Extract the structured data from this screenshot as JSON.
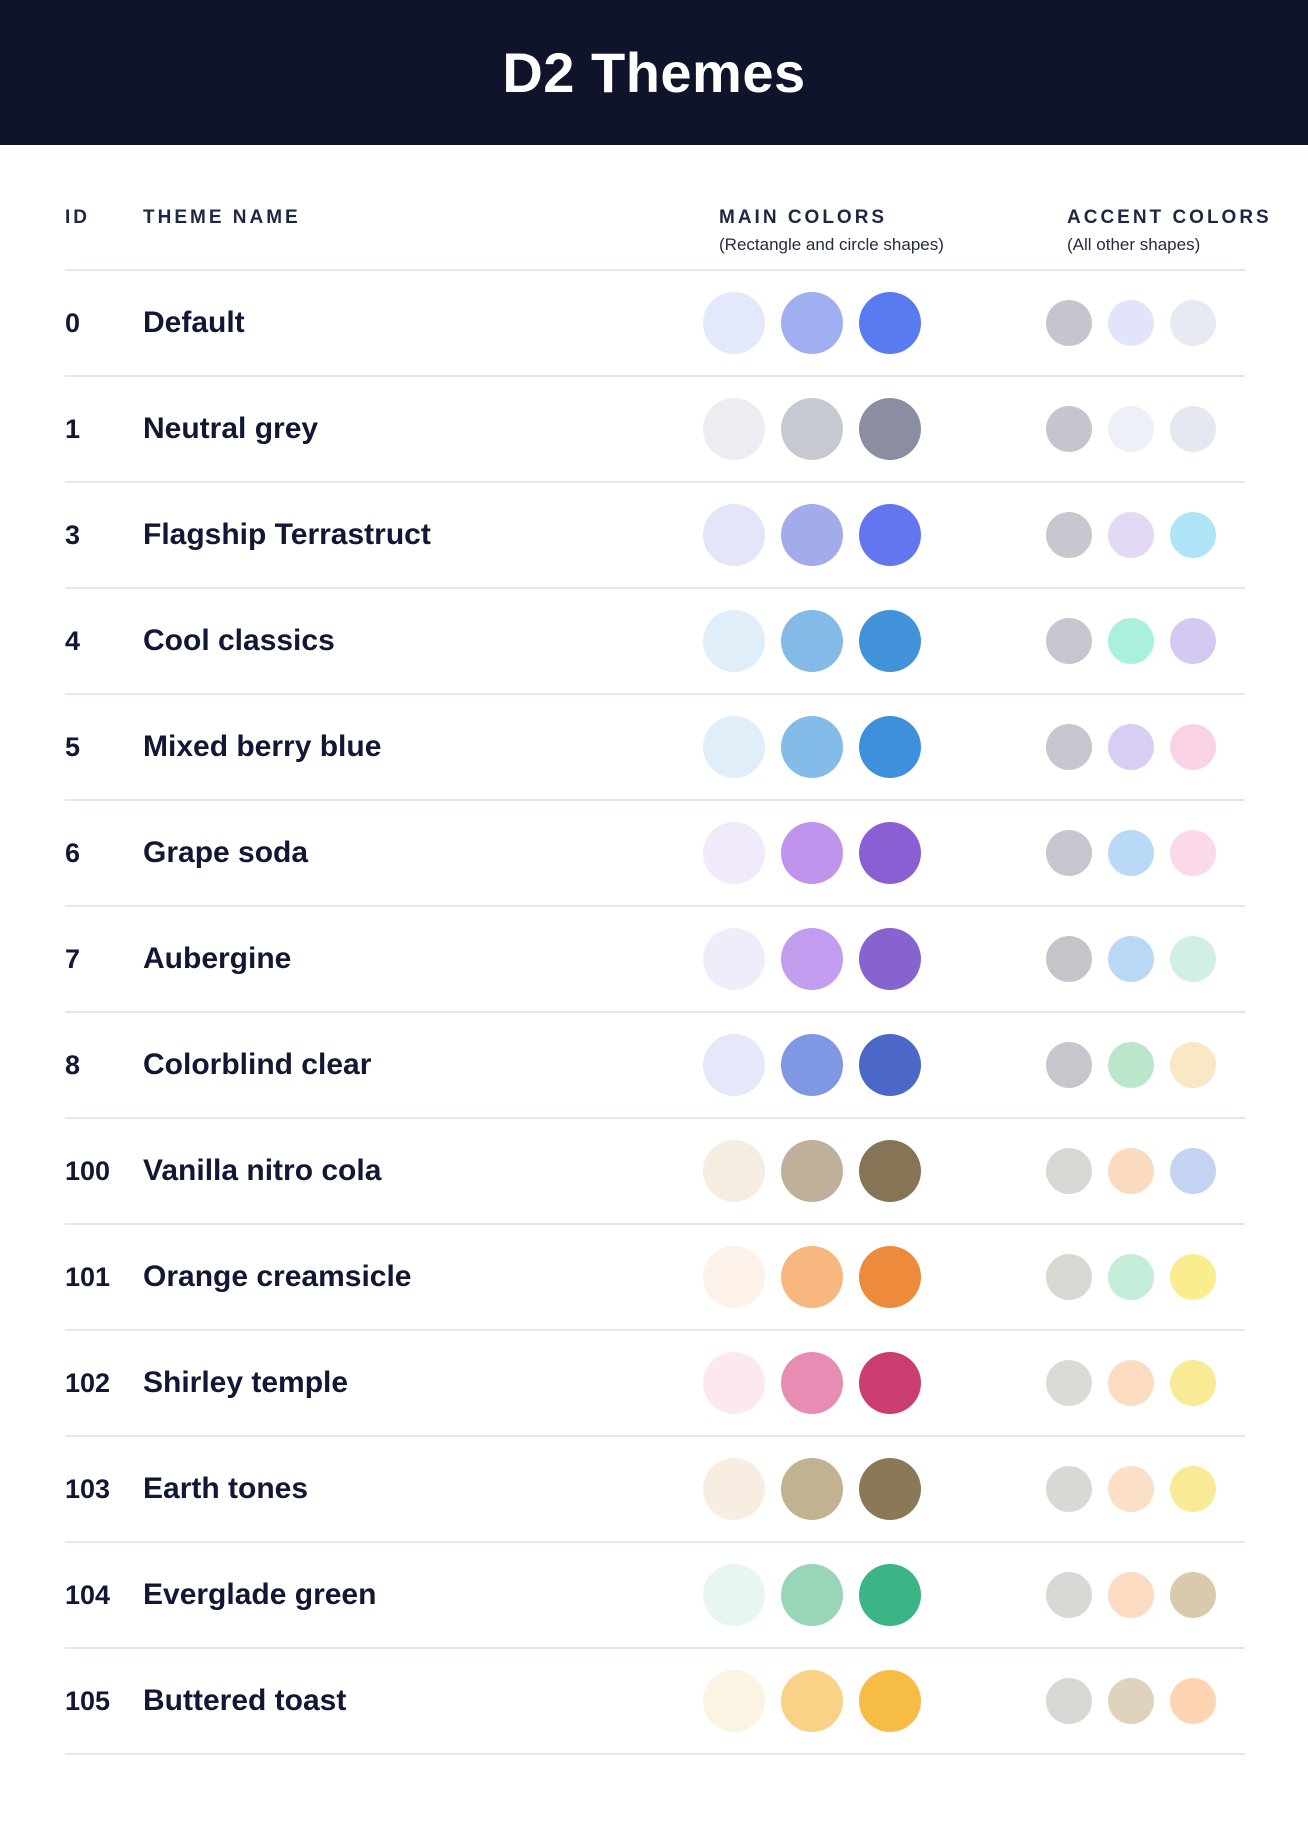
{
  "header": {
    "title": "D2 Themes"
  },
  "table": {
    "columns": {
      "id": "ID",
      "name": "THEME NAME",
      "main": "MAIN COLORS",
      "main_sub": "(Rectangle and circle shapes)",
      "accent": "ACCENT COLORS",
      "accent_sub": "(All other shapes)"
    },
    "rows": [
      {
        "id": "0",
        "name": "Default",
        "main": [
          "#E4E8FB",
          "#9FAFEF",
          "#597BF2"
        ],
        "accent": [
          "#C4C5CE",
          "#E2E5FA",
          "#E8EAF3"
        ]
      },
      {
        "id": "1",
        "name": "Neutral grey",
        "main": [
          "#EBEDF3",
          "#C6C9D1",
          "#8A8EA0"
        ],
        "accent": [
          "#C4C5CE",
          "#EEF0F7",
          "#E6E8F1"
        ]
      },
      {
        "id": "3",
        "name": "Flagship Terrastruct",
        "main": [
          "#E3E6F9",
          "#A2ACEA",
          "#6476EF"
        ],
        "accent": [
          "#C7C8CF",
          "#E3D9F4",
          "#AEE4F5"
        ]
      },
      {
        "id": "4",
        "name": "Cool classics",
        "main": [
          "#E0EEF9",
          "#83BAE7",
          "#4292DA"
        ],
        "accent": [
          "#C6C7CE",
          "#A9F0DD",
          "#D4C9F1"
        ]
      },
      {
        "id": "5",
        "name": "Mixed berry blue",
        "main": [
          "#E0EEFA",
          "#84BCE9",
          "#3F90DB"
        ],
        "accent": [
          "#C6C7CE",
          "#D8CEF3",
          "#FAD2E5"
        ]
      },
      {
        "id": "6",
        "name": "Grape soda",
        "main": [
          "#F0EAFA",
          "#C094EC",
          "#8960D3"
        ],
        "accent": [
          "#C6C7CE",
          "#BAD9F6",
          "#FBD8EA"
        ]
      },
      {
        "id": "7",
        "name": "Aubergine",
        "main": [
          "#F1ECFA",
          "#C29CEF",
          "#8763D0"
        ],
        "accent": [
          "#C4C5CB",
          "#BAD8F5",
          "#D2EFE6"
        ]
      },
      {
        "id": "8",
        "name": "Colorblind clear",
        "main": [
          "#E4E8F8",
          "#8097E4",
          "#4B68C8"
        ],
        "accent": [
          "#C6C7CD",
          "#BBE6CC",
          "#FAE7C3"
        ]
      },
      {
        "id": "100",
        "name": "Vanilla nitro cola",
        "main": [
          "#F6EDE2",
          "#BEB099",
          "#867456"
        ],
        "accent": [
          "#D8D7D3",
          "#FBDBC0",
          "#C4D3F1"
        ]
      },
      {
        "id": "101",
        "name": "Orange creamsicle",
        "main": [
          "#FDF2E9",
          "#F7B77F",
          "#EE8A3B"
        ],
        "accent": [
          "#D8D7D2",
          "#C3EDD8",
          "#F9ED8D"
        ]
      },
      {
        "id": "102",
        "name": "Shirley temple",
        "main": [
          "#FBE8F1",
          "#E78DB4",
          "#C93D70"
        ],
        "accent": [
          "#DBDAD6",
          "#FBDCC1",
          "#F9EB95"
        ]
      },
      {
        "id": "103",
        "name": "Earth tones",
        "main": [
          "#F7EDE0",
          "#C1B292",
          "#897957"
        ],
        "accent": [
          "#D9D8D4",
          "#FBDFC7",
          "#F9EB96"
        ]
      },
      {
        "id": "104",
        "name": "Everglade green",
        "main": [
          "#E7F7EF",
          "#99D5B7",
          "#3BB486"
        ],
        "accent": [
          "#D9D8D4",
          "#FBDBC2",
          "#D9CAAE"
        ]
      },
      {
        "id": "105",
        "name": "Buttered toast",
        "main": [
          "#FCF4E2",
          "#FAD287",
          "#F6BC45"
        ],
        "accent": [
          "#D8D7D3",
          "#E0D3BE",
          "#FDD5B2"
        ]
      }
    ]
  },
  "colors": {
    "titlebar_bg": "#10142B",
    "title_text": "#FFFFFF",
    "heading_text": "#1E2742",
    "body_text": "#111735",
    "divider": "#E3E5F0",
    "page_bg": "#FFFFFF"
  }
}
